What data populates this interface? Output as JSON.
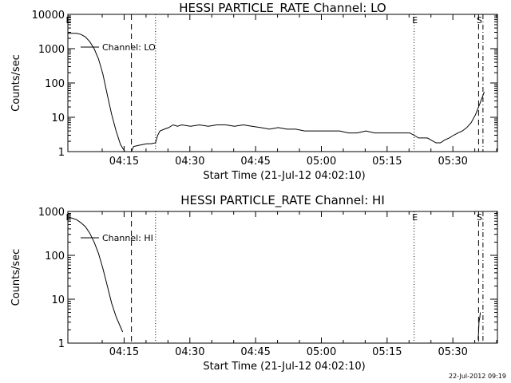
{
  "chart_data": [
    {
      "type": "line",
      "title": "HESSI PARTICLE_RATE Channel: LO",
      "xlabel": "Start Time (21-Jul-12 04:02:10)",
      "ylabel": "Counts/sec",
      "x_unit": "minutes after 04:02:10",
      "xlim": [
        0,
        98
      ],
      "ylim": [
        1,
        10000
      ],
      "yscale": "log",
      "grid": false,
      "xtick_labels": [
        "04:15",
        "04:30",
        "04:45",
        "05:00",
        "05:15",
        "05:30"
      ],
      "ytick_labels": [
        "1",
        "10",
        "100",
        "1000",
        "10000"
      ],
      "legend": {
        "label": "Channel: LO",
        "placement": "top-left"
      },
      "markers": [
        {
          "label": "E",
          "x": 0,
          "style": "none"
        },
        {
          "label": "",
          "x": 14.5,
          "style": "dashed"
        },
        {
          "label": "",
          "x": 20,
          "style": "dotted"
        },
        {
          "label": "E",
          "x": 79,
          "style": "dotted"
        },
        {
          "label": "S",
          "x": 93.7,
          "style": "dashed"
        },
        {
          "label": "",
          "x": 94.7,
          "style": "dashdot"
        }
      ],
      "series": [
        {
          "x": [
            0,
            2,
            3,
            4,
            5,
            6,
            7,
            8,
            9,
            10,
            11,
            12,
            13,
            14,
            14.5,
            15,
            16,
            17,
            18,
            19,
            20,
            20.5,
            21,
            22,
            23,
            24,
            25,
            26,
            28,
            30,
            32,
            34,
            36,
            38,
            40,
            42,
            44,
            46,
            48,
            50,
            52,
            54,
            56,
            58,
            60,
            62,
            64,
            66,
            68,
            70,
            72,
            74,
            76,
            78,
            79,
            80,
            82,
            84,
            85,
            86,
            87,
            88,
            89,
            90,
            91,
            92,
            93,
            94,
            95
          ],
          "values": [
            2800,
            2800,
            2600,
            2200,
            1600,
            1000,
            500,
            180,
            45,
            12,
            4,
            1.6,
            1,
            0.9,
            0.8,
            1.4,
            1.5,
            1.6,
            1.7,
            1.7,
            1.8,
            3,
            4,
            4.5,
            5,
            6,
            5.5,
            6,
            5.5,
            6,
            5.5,
            6,
            6,
            5.5,
            6,
            5.5,
            5,
            4.5,
            5,
            4.5,
            4.5,
            4,
            4,
            4,
            4,
            4,
            3.5,
            3.5,
            4,
            3.5,
            3.5,
            3.5,
            3.5,
            3.5,
            3,
            2.5,
            2.5,
            1.8,
            1.8,
            2.2,
            2.5,
            3,
            3.5,
            4,
            5,
            7,
            12,
            25,
            55
          ]
        }
      ]
    },
    {
      "type": "line",
      "title": "HESSI PARTICLE_RATE Channel: HI",
      "xlabel": "Start Time (21-Jul-12 04:02:10)",
      "ylabel": "Counts/sec",
      "x_unit": "minutes after 04:02:10",
      "xlim": [
        0,
        98
      ],
      "ylim": [
        1,
        1000
      ],
      "yscale": "log",
      "grid": false,
      "xtick_labels": [
        "04:15",
        "04:30",
        "04:45",
        "05:00",
        "05:15",
        "05:30"
      ],
      "ytick_labels": [
        "1",
        "10",
        "100",
        "1000"
      ],
      "legend": {
        "label": "Channel: HI",
        "placement": "top-left"
      },
      "markers": [
        {
          "label": "E",
          "x": 0,
          "style": "none"
        },
        {
          "label": "",
          "x": 14.5,
          "style": "dashed"
        },
        {
          "label": "",
          "x": 20,
          "style": "dotted"
        },
        {
          "label": "E",
          "x": 79,
          "style": "dotted"
        },
        {
          "label": "S",
          "x": 93.7,
          "style": "dashed"
        },
        {
          "label": "",
          "x": 94.7,
          "style": "dashdot"
        }
      ],
      "series": [
        {
          "x": [
            0,
            1,
            2,
            3,
            4,
            5,
            6,
            7,
            8,
            9,
            10,
            11,
            12.5
          ],
          "values": [
            750,
            700,
            650,
            550,
            450,
            320,
            200,
            110,
            50,
            20,
            8,
            4,
            1.8
          ]
        },
        {
          "x": [
            93.6,
            93.7,
            93.8,
            94.0,
            94.1
          ],
          "values": [
            1.2,
            1.8,
            3,
            4,
            5
          ]
        }
      ]
    }
  ],
  "timestamp": "22-Jul-2012 09:19"
}
